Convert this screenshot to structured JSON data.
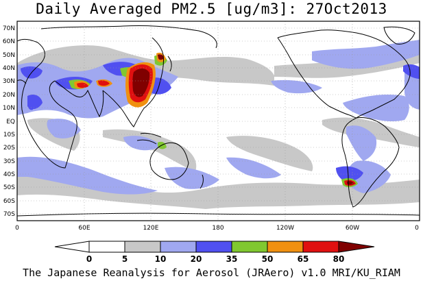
{
  "title": "Daily Averaged PM2.5 [ug/m3]: 27Oct2013",
  "footer": "The Japanese Reanalysis for Aerosol (JRAero) v1.0 MRI/KU_RIAM",
  "map": {
    "lon_range": [
      0,
      360
    ],
    "lat_range": [
      -75,
      75
    ],
    "lat_ticks": [
      {
        "label": "70N",
        "lat": 70
      },
      {
        "label": "60N",
        "lat": 60
      },
      {
        "label": "50N",
        "lat": 50
      },
      {
        "label": "40N",
        "lat": 40
      },
      {
        "label": "30N",
        "lat": 30
      },
      {
        "label": "20N",
        "lat": 20
      },
      {
        "label": "10N",
        "lat": 10
      },
      {
        "label": "EQ",
        "lat": 0
      },
      {
        "label": "10S",
        "lat": -10
      },
      {
        "label": "20S",
        "lat": -20
      },
      {
        "label": "30S",
        "lat": -30
      },
      {
        "label": "40S",
        "lat": -40
      },
      {
        "label": "50S",
        "lat": -50
      },
      {
        "label": "60S",
        "lat": -60
      },
      {
        "label": "70S",
        "lat": -70
      }
    ],
    "lon_ticks": [
      {
        "label": "0",
        "lon": 0
      },
      {
        "label": "60E",
        "lon": 60
      },
      {
        "label": "120E",
        "lon": 120
      },
      {
        "label": "180",
        "lon": 180
      },
      {
        "label": "120W",
        "lon": 240
      },
      {
        "label": "60W",
        "lon": 300
      },
      {
        "label": "0",
        "lon": 360
      }
    ],
    "grid": true
  },
  "colorbar": {
    "labels": [
      "0",
      "5",
      "10",
      "20",
      "35",
      "50",
      "65",
      "80"
    ],
    "colors": [
      "#ffffff",
      "#c8c8c8",
      "#a0a8f0",
      "#5050f0",
      "#80c830",
      "#f09010",
      "#e01010",
      "#800000"
    ]
  }
}
